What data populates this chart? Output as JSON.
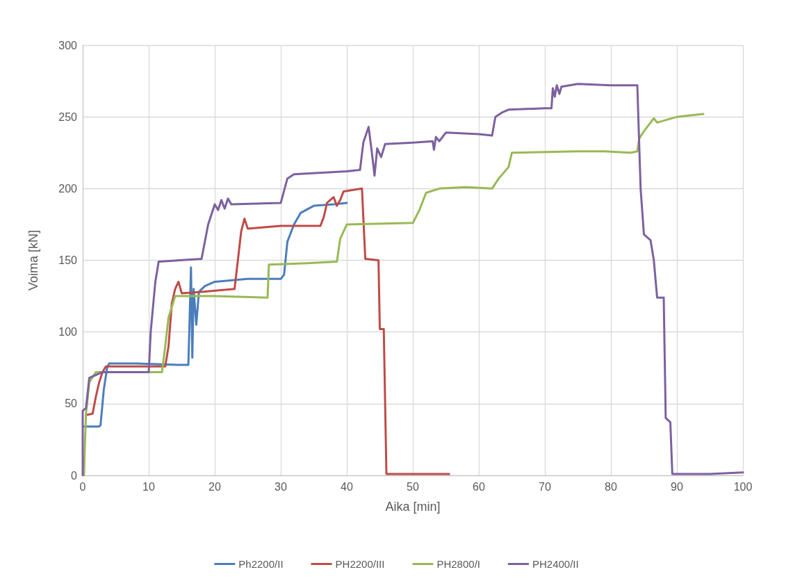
{
  "chart_data": {
    "type": "line",
    "xlabel": "Aika [min]",
    "ylabel": "Voima [kN]",
    "xlim": [
      0,
      100
    ],
    "xticks": [
      0,
      10,
      20,
      30,
      40,
      50,
      60,
      70,
      80,
      90,
      100
    ],
    "ylim": [
      0,
      300
    ],
    "yticks": [
      0,
      50,
      100,
      150,
      200,
      250,
      300
    ],
    "grid": true,
    "legend": "bottom",
    "marker": "none",
    "line_style": "solid",
    "series": [
      {
        "name": "Ph2200/II",
        "color": "#4a7ebb",
        "x": [
          0.2,
          2.5,
          2.7,
          3.2,
          3.7,
          4,
          8,
          15,
          16,
          16.2,
          16.4,
          16.6,
          16.8,
          17.2,
          17.6,
          18.5,
          20,
          25,
          30,
          30.5,
          31,
          32,
          33,
          35,
          38,
          40
        ],
        "values": [
          34,
          34,
          35,
          60,
          75,
          78,
          78,
          77,
          77,
          110,
          145,
          82,
          130,
          105,
          128,
          132,
          135,
          137,
          137,
          140,
          163,
          175,
          183,
          188,
          189,
          190
        ]
      },
      {
        "name": "PH2200/III",
        "color": "#be4b48",
        "x": [
          0.5,
          1.5,
          2,
          2.5,
          3,
          3.5,
          12.5,
          13,
          13.5,
          14,
          14.5,
          15,
          18,
          23,
          23.5,
          24,
          24.5,
          25,
          30,
          36,
          36.5,
          37,
          38,
          38.5,
          39,
          39.5,
          42.3,
          42.5,
          42.8,
          44.8,
          45,
          45.6,
          46,
          55.5
        ],
        "values": [
          42,
          43,
          55,
          65,
          72,
          76,
          76,
          90,
          120,
          130,
          135,
          127,
          128,
          130,
          150,
          170,
          179,
          172,
          174,
          174,
          180,
          190,
          194,
          188,
          192,
          198,
          200,
          180,
          151,
          150,
          102,
          102,
          1,
          1
        ]
      },
      {
        "name": "PH2800/I",
        "color": "#98b954",
        "x": [
          0.2,
          0.3,
          0.5,
          1,
          2,
          10,
          12,
          12.5,
          13,
          14,
          20,
          28,
          28.2,
          34,
          38.5,
          39,
          40,
          50,
          51,
          52,
          54,
          58,
          62,
          63,
          64.5,
          65,
          75,
          79,
          83,
          84,
          84.3,
          85,
          86,
          86.5,
          87,
          90,
          92,
          94
        ],
        "values": [
          0,
          17,
          43,
          65,
          72,
          72,
          72,
          90,
          110,
          125,
          125,
          124,
          147,
          148,
          149,
          165,
          175,
          176,
          185,
          197,
          200,
          201,
          200,
          207,
          215,
          225,
          226,
          226,
          225,
          226,
          235,
          240,
          246,
          249,
          246,
          250,
          251,
          252
        ]
      },
      {
        "name": "PH2400/II",
        "color": "#7d60a0",
        "x": [
          0,
          0,
          0.5,
          1,
          2,
          3,
          10,
          10.3,
          11,
          11.5,
          18,
          19,
          20,
          20.5,
          21,
          21.5,
          22,
          22.5,
          30,
          31,
          32,
          40,
          42,
          42.5,
          43.3,
          43.8,
          44.2,
          44.6,
          45.2,
          45.8,
          50,
          53,
          53.2,
          53.5,
          54,
          55,
          60,
          62,
          62.5,
          63.5,
          64.5,
          70,
          71,
          71.2,
          71.5,
          71.8,
          72.2,
          72.5,
          75,
          80,
          84,
          84.5,
          85,
          86,
          86.5,
          87,
          88,
          88.3,
          89,
          89.3,
          95,
          100
        ],
        "values": [
          0,
          45,
          47,
          68,
          70,
          72,
          72,
          100,
          135,
          149,
          151,
          175,
          189,
          185,
          192,
          186,
          193,
          189,
          190,
          207,
          210,
          212,
          213,
          232,
          243,
          225,
          209,
          228,
          222,
          231,
          232,
          233,
          227,
          236,
          233,
          239,
          238,
          237,
          250,
          253,
          255,
          256,
          256,
          270,
          264,
          272,
          266,
          271,
          273,
          272,
          272,
          200,
          168,
          164,
          150,
          124,
          124,
          40,
          37,
          1,
          1,
          2
        ]
      }
    ]
  }
}
